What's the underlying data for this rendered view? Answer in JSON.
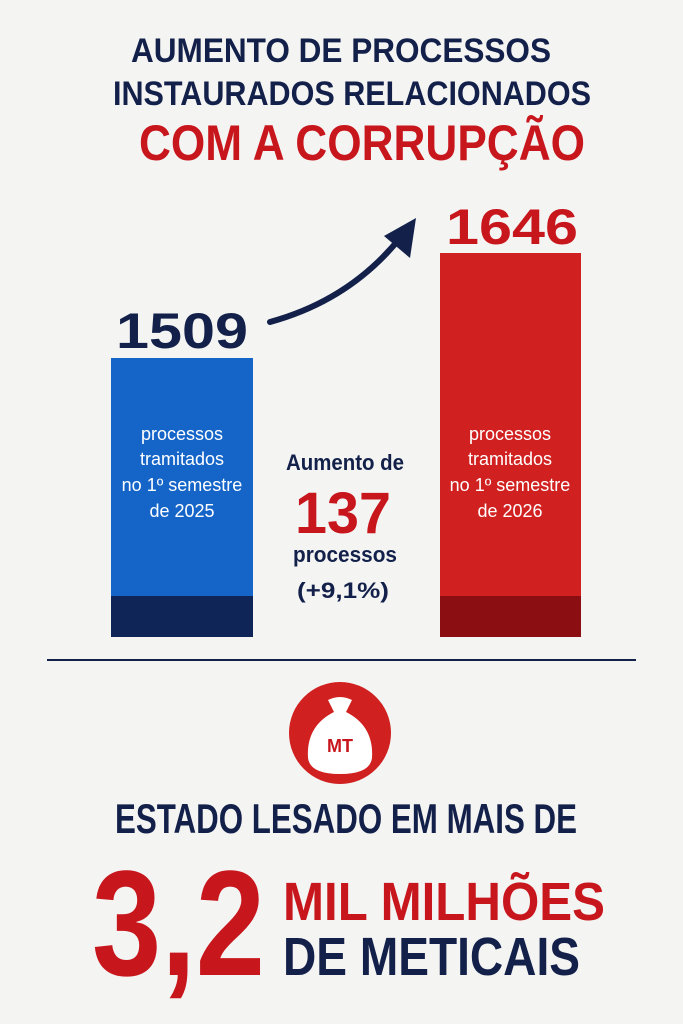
{
  "title": {
    "line1": "AUMENTO DE PROCESSOS",
    "line2": "INSTAURADOS RELACIONADOS",
    "line3": "COM A CORRUPÇÃO"
  },
  "bars": [
    {
      "value": 1509,
      "label": [
        "processos",
        "tramitados",
        "no 1º semestre",
        "de 2025"
      ]
    },
    {
      "value": 1646,
      "label": [
        "processos",
        "tramitados",
        "no 1º semestre",
        "de 2026"
      ]
    }
  ],
  "increase": {
    "intro": "Aumento de",
    "value": 137,
    "unit": "processos",
    "percent": "(+9,1%)"
  },
  "icon": {
    "label": "MT"
  },
  "footer": {
    "heading": "ESTADO LESADO EM MAIS DE",
    "amount": "3,2",
    "line1": "MIL MILHÕES",
    "line2": "DE METICAIS"
  }
}
